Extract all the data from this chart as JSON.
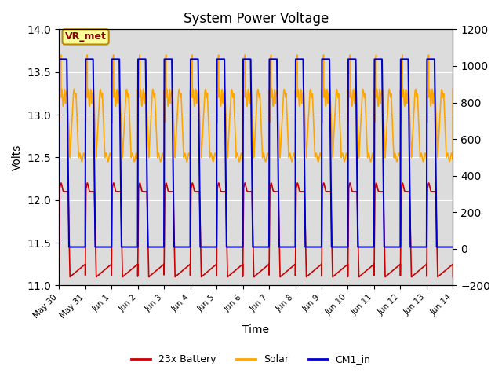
{
  "title": "System Power Voltage",
  "xlabel": "Time",
  "ylabel_left": "Volts",
  "ylim_left": [
    11.0,
    14.0
  ],
  "ylim_right": [
    -200,
    1200
  ],
  "bg_color": "#dcdcdc",
  "fig_color": "#ffffff",
  "legend_labels": [
    "23x Battery",
    "Solar",
    "CM1_in"
  ],
  "legend_colors": [
    "#cc0000",
    "#ffa500",
    "#0000cc"
  ],
  "annotation_text": "VR_met",
  "annotation_color": "#8b0000",
  "annotation_bg": "#ffff99",
  "annotation_border": "#b8860b",
  "grid_color": "#ffffff",
  "tick_labels_x": [
    "May 30",
    "May 31",
    "Jun 1",
    "Jun 2",
    "Jun 3",
    "Jun 4",
    "Jun 5",
    "Jun 6",
    "Jun 7",
    "Jun 8",
    "Jun 9",
    "Jun 10",
    "Jun 11",
    "Jun 12",
    "Jun 13",
    "Jun 14"
  ],
  "yticks_left": [
    11.0,
    11.5,
    12.0,
    12.5,
    13.0,
    13.5,
    14.0
  ],
  "yticks_right": [
    -200,
    0,
    200,
    400,
    600,
    800,
    1000,
    1200
  ]
}
